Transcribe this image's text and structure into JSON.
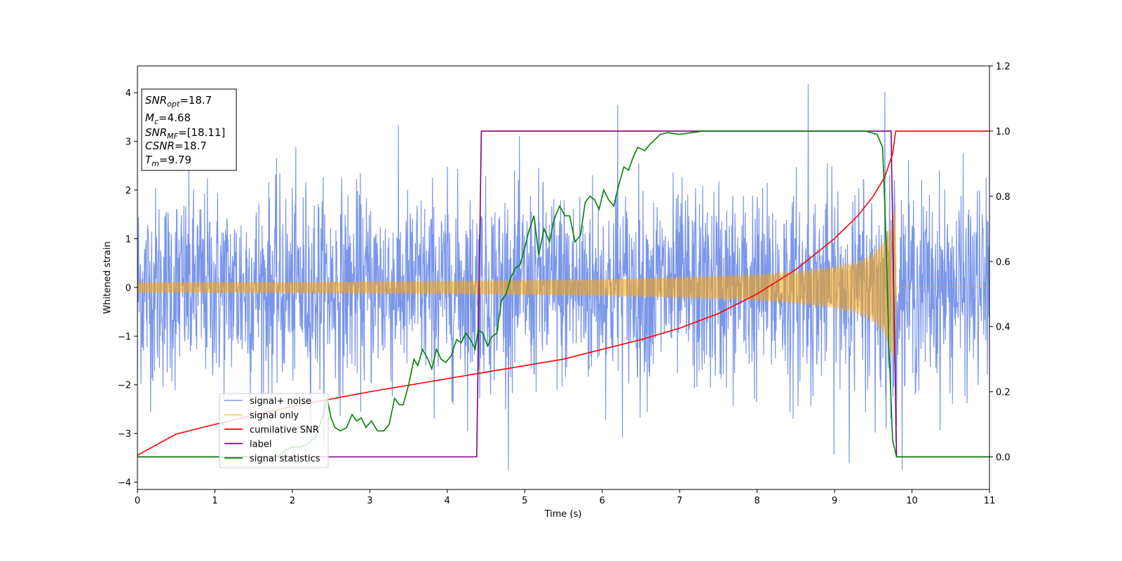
{
  "chart_data": {
    "type": "line",
    "xlabel": "Time (s)",
    "ylabel": "Whitened strain",
    "xlim": [
      0,
      11
    ],
    "ylim_left": [
      -4.15,
      4.55
    ],
    "ylim_right": [
      -0.1,
      1.2
    ],
    "x_ticks": [
      "0",
      "1",
      "2",
      "3",
      "4",
      "5",
      "6",
      "7",
      "8",
      "9",
      "10",
      "11"
    ],
    "y_ticks_left": [
      "−4",
      "−3",
      "−2",
      "−1",
      "0",
      "1",
      "2",
      "3",
      "4"
    ],
    "y_ticks_right": [
      "0.0",
      "0.2",
      "0.4",
      "0.6",
      "0.8",
      "1.0",
      "1.2"
    ],
    "grid": false,
    "legend_position": "lower-left",
    "info_box": {
      "snr_opt": {
        "name": "SNR",
        "sub": "opt",
        "value": "=18.7"
      },
      "mc": {
        "name": "M",
        "sub": "c",
        "value": "=4.68"
      },
      "snr_mf": {
        "name": "SNR",
        "sub": "MF",
        "value": "=[18.11]"
      },
      "csnr": {
        "name": "CSNR",
        "value": "=18.7"
      },
      "tm": {
        "name": "T",
        "sub": "m",
        "value": "=9.79"
      }
    },
    "series": [
      {
        "name": "signal+ noise",
        "color": "#4169e1",
        "axis": "left",
        "noise_sigma": 1.0,
        "peak_values": [
          4.17,
          4.02,
          3.75
        ]
      },
      {
        "name": "signal only",
        "color": "#ffa500",
        "axis": "left",
        "envelope": {
          "t": [
            0,
            2,
            4,
            6,
            7,
            8,
            8.5,
            9,
            9.3,
            9.5,
            9.65,
            9.75,
            9.79,
            9.8,
            11
          ],
          "amp": [
            0.11,
            0.12,
            0.14,
            0.18,
            0.22,
            0.28,
            0.34,
            0.44,
            0.55,
            0.72,
            1.0,
            1.45,
            1.75,
            0.0,
            0.0
          ]
        }
      },
      {
        "name": "cumilative SNR",
        "color": "#ff0000",
        "axis": "right",
        "x": [
          0,
          0.5,
          1,
          2,
          3,
          4,
          4.5,
          5,
          5.5,
          6,
          6.5,
          7,
          7.5,
          8,
          8.5,
          9,
          9.3,
          9.5,
          9.65,
          9.75,
          9.79,
          9.8,
          11
        ],
        "y": [
          0.005,
          0.07,
          0.1,
          0.155,
          0.2,
          0.24,
          0.26,
          0.28,
          0.3,
          0.33,
          0.36,
          0.395,
          0.44,
          0.5,
          0.575,
          0.67,
          0.74,
          0.8,
          0.86,
          0.93,
          1.0,
          1.0,
          1.0
        ]
      },
      {
        "name": "label",
        "color": "#800080",
        "axis": "right",
        "x": [
          0,
          4.38,
          4.44,
          9.73,
          9.8,
          11
        ],
        "y": [
          0.0,
          0.0,
          1.0,
          1.0,
          0.0,
          0.0
        ]
      },
      {
        "name": "signal statistics",
        "color": "#008000",
        "axis": "right",
        "x": [
          0,
          1.0,
          1.8,
          1.9,
          2.0,
          2.1,
          2.2,
          2.3,
          2.4,
          2.45,
          2.5,
          2.55,
          2.62,
          2.7,
          2.77,
          2.83,
          2.89,
          2.95,
          3.02,
          3.1,
          3.18,
          3.25,
          3.32,
          3.38,
          3.43,
          3.5,
          3.57,
          3.62,
          3.68,
          3.75,
          3.8,
          3.86,
          3.92,
          3.98,
          4.05,
          4.12,
          4.18,
          4.24,
          4.3,
          4.36,
          4.4,
          4.46,
          4.52,
          4.58,
          4.64,
          4.7,
          4.76,
          4.82,
          4.88,
          4.94,
          5.0,
          5.05,
          5.12,
          5.18,
          5.25,
          5.32,
          5.38,
          5.45,
          5.52,
          5.58,
          5.65,
          5.72,
          5.78,
          5.84,
          5.9,
          5.96,
          6.02,
          6.08,
          6.15,
          6.22,
          6.28,
          6.34,
          6.4,
          6.46,
          6.55,
          6.62,
          6.75,
          6.85,
          7.0,
          7.15,
          7.3,
          7.5,
          7.8,
          8.2,
          8.6,
          9.0,
          9.4,
          9.55,
          9.62,
          9.66,
          9.7,
          9.75,
          9.8,
          9.86,
          11
        ],
        "y": [
          0.0,
          0.0,
          0.0,
          0.02,
          0.03,
          0.03,
          0.04,
          0.06,
          0.13,
          0.18,
          0.12,
          0.09,
          0.08,
          0.09,
          0.13,
          0.11,
          0.12,
          0.09,
          0.11,
          0.08,
          0.08,
          0.1,
          0.18,
          0.16,
          0.16,
          0.22,
          0.3,
          0.28,
          0.33,
          0.3,
          0.27,
          0.33,
          0.3,
          0.29,
          0.31,
          0.36,
          0.35,
          0.38,
          0.36,
          0.33,
          0.39,
          0.38,
          0.34,
          0.37,
          0.38,
          0.48,
          0.5,
          0.55,
          0.58,
          0.59,
          0.64,
          0.69,
          0.74,
          0.62,
          0.7,
          0.66,
          0.73,
          0.77,
          0.74,
          0.74,
          0.66,
          0.68,
          0.78,
          0.8,
          0.79,
          0.76,
          0.82,
          0.79,
          0.77,
          0.84,
          0.89,
          0.88,
          0.92,
          0.95,
          0.94,
          0.96,
          0.99,
          0.995,
          0.99,
          0.995,
          1.0,
          1.0,
          1.0,
          1.0,
          1.0,
          1.0,
          1.0,
          0.99,
          0.95,
          0.7,
          0.35,
          0.05,
          0.0,
          0.0,
          0.0
        ]
      }
    ]
  }
}
